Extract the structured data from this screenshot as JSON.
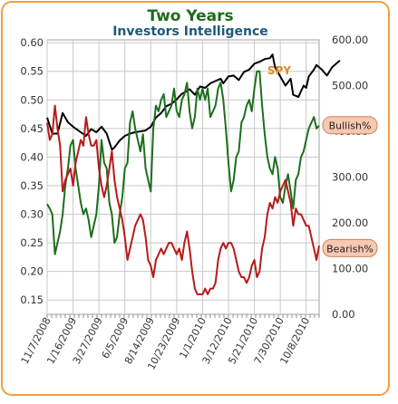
{
  "chart_data": {
    "type": "line",
    "title": "Two Years",
    "subtitle": "Investors Intelligence",
    "title_color": "#1e6b1e",
    "subtitle_color": "#1e5a78",
    "x_tick_labels": [
      "11/7/2008",
      "1/16/2009",
      "3/27/2009",
      "6/5/2009",
      "8/14/2009",
      "10/23/2009",
      "1/1/2010",
      "3/12/2010",
      "5/21/2010",
      "7/30/2010",
      "10/8/2010"
    ],
    "left_axis": {
      "ticks": [
        "0.60",
        "0.55",
        "0.50",
        "0.45",
        "0.40",
        "0.35",
        "0.30",
        "0.25",
        "0.20",
        "0.15"
      ],
      "ylim": [
        0.125,
        0.605
      ]
    },
    "right_axis": {
      "ticks": [
        "600.00",
        "500.00",
        "400.00",
        "300.00",
        "200.00",
        "100.00",
        "0.00"
      ],
      "ylim": [
        0,
        600
      ]
    },
    "grid": true,
    "x_count": 105,
    "series": [
      {
        "name": "SPY",
        "axis": "right",
        "color": "#000000",
        "label_color": "#e08a1e",
        "points": [
          [
            0,
            430
          ],
          [
            2,
            395
          ],
          [
            4,
            395
          ],
          [
            6,
            440
          ],
          [
            8,
            420
          ],
          [
            10,
            410
          ],
          [
            13,
            398
          ],
          [
            15,
            390
          ],
          [
            17,
            405
          ],
          [
            19,
            398
          ],
          [
            21,
            410
          ],
          [
            23,
            395
          ],
          [
            25,
            360
          ],
          [
            26,
            365
          ],
          [
            28,
            380
          ],
          [
            30,
            390
          ],
          [
            32,
            395
          ],
          [
            34,
            398
          ],
          [
            36,
            400
          ],
          [
            38,
            402
          ],
          [
            40,
            410
          ],
          [
            42,
            430
          ],
          [
            44,
            440
          ],
          [
            46,
            455
          ],
          [
            48,
            460
          ],
          [
            50,
            470
          ],
          [
            52,
            482
          ],
          [
            54,
            488
          ],
          [
            55,
            492
          ],
          [
            57,
            480
          ],
          [
            59,
            498
          ],
          [
            61,
            495
          ],
          [
            63,
            505
          ],
          [
            65,
            510
          ],
          [
            67,
            515
          ],
          [
            68,
            505
          ],
          [
            70,
            520
          ],
          [
            72,
            522
          ],
          [
            74,
            512
          ],
          [
            76,
            530
          ],
          [
            78,
            535
          ],
          [
            80,
            548
          ],
          [
            82,
            552
          ],
          [
            84,
            558
          ],
          [
            86,
            560
          ],
          [
            87,
            568
          ],
          [
            88,
            540
          ],
          [
            90,
            520
          ],
          [
            92,
            500
          ],
          [
            94,
            515
          ],
          [
            95,
            480
          ],
          [
            97,
            475
          ],
          [
            99,
            500
          ],
          [
            100,
            495
          ],
          [
            101,
            520
          ],
          [
            103,
            535
          ],
          [
            104,
            545
          ],
          [
            106,
            535
          ],
          [
            108,
            522
          ],
          [
            110,
            540
          ],
          [
            112,
            550
          ],
          [
            113,
            555
          ]
        ]
      },
      {
        "name": "Bullish%",
        "axis": "left",
        "color": "#1e6e1e",
        "points": [
          [
            0,
            0.318
          ],
          [
            1,
            0.31
          ],
          [
            2,
            0.3
          ],
          [
            3,
            0.23
          ],
          [
            4,
            0.25
          ],
          [
            5,
            0.27
          ],
          [
            6,
            0.3
          ],
          [
            7,
            0.35
          ],
          [
            8,
            0.38
          ],
          [
            9,
            0.42
          ],
          [
            10,
            0.43
          ],
          [
            11,
            0.38
          ],
          [
            12,
            0.35
          ],
          [
            13,
            0.32
          ],
          [
            14,
            0.3
          ],
          [
            15,
            0.31
          ],
          [
            16,
            0.29
          ],
          [
            17,
            0.26
          ],
          [
            18,
            0.28
          ],
          [
            19,
            0.3
          ],
          [
            20,
            0.35
          ],
          [
            21,
            0.43
          ],
          [
            22,
            0.39
          ],
          [
            23,
            0.38
          ],
          [
            24,
            0.32
          ],
          [
            25,
            0.3
          ],
          [
            26,
            0.25
          ],
          [
            27,
            0.26
          ],
          [
            28,
            0.3
          ],
          [
            29,
            0.33
          ],
          [
            30,
            0.38
          ],
          [
            31,
            0.39
          ],
          [
            32,
            0.46
          ],
          [
            33,
            0.48
          ],
          [
            34,
            0.45
          ],
          [
            35,
            0.43
          ],
          [
            36,
            0.41
          ],
          [
            37,
            0.44
          ],
          [
            38,
            0.38
          ],
          [
            39,
            0.36
          ],
          [
            40,
            0.34
          ],
          [
            41,
            0.45
          ],
          [
            42,
            0.49
          ],
          [
            43,
            0.48
          ],
          [
            44,
            0.5
          ],
          [
            45,
            0.51
          ],
          [
            46,
            0.47
          ],
          [
            47,
            0.48
          ],
          [
            48,
            0.49
          ],
          [
            49,
            0.52
          ],
          [
            50,
            0.48
          ],
          [
            51,
            0.47
          ],
          [
            52,
            0.5
          ],
          [
            53,
            0.51
          ],
          [
            54,
            0.53
          ],
          [
            55,
            0.48
          ],
          [
            56,
            0.45
          ],
          [
            57,
            0.47
          ],
          [
            58,
            0.52
          ],
          [
            59,
            0.5
          ],
          [
            60,
            0.52
          ],
          [
            61,
            0.5
          ],
          [
            62,
            0.52
          ],
          [
            63,
            0.47
          ],
          [
            64,
            0.48
          ],
          [
            65,
            0.49
          ],
          [
            66,
            0.52
          ],
          [
            67,
            0.53
          ],
          [
            68,
            0.5
          ],
          [
            69,
            0.45
          ],
          [
            70,
            0.39
          ],
          [
            71,
            0.34
          ],
          [
            72,
            0.36
          ],
          [
            73,
            0.4
          ],
          [
            74,
            0.41
          ],
          [
            75,
            0.46
          ],
          [
            76,
            0.47
          ],
          [
            77,
            0.49
          ],
          [
            78,
            0.5
          ],
          [
            79,
            0.48
          ],
          [
            80,
            0.52
          ],
          [
            81,
            0.55
          ],
          [
            82,
            0.55
          ],
          [
            83,
            0.49
          ],
          [
            84,
            0.44
          ],
          [
            85,
            0.4
          ],
          [
            86,
            0.38
          ],
          [
            87,
            0.37
          ],
          [
            88,
            0.4
          ],
          [
            89,
            0.38
          ],
          [
            90,
            0.33
          ],
          [
            91,
            0.32
          ],
          [
            92,
            0.35
          ],
          [
            93,
            0.37
          ],
          [
            94,
            0.34
          ],
          [
            95,
            0.31
          ],
          [
            96,
            0.36
          ],
          [
            97,
            0.37
          ],
          [
            98,
            0.4
          ],
          [
            99,
            0.41
          ],
          [
            100,
            0.43
          ],
          [
            101,
            0.45
          ],
          [
            102,
            0.46
          ],
          [
            103,
            0.47
          ],
          [
            104,
            0.45
          ],
          [
            105,
            0.455
          ]
        ]
      },
      {
        "name": "Bearish%",
        "axis": "left",
        "color": "#b81a1a",
        "points": [
          [
            0,
            0.46
          ],
          [
            1,
            0.43
          ],
          [
            2,
            0.44
          ],
          [
            3,
            0.49
          ],
          [
            4,
            0.45
          ],
          [
            5,
            0.42
          ],
          [
            6,
            0.34
          ],
          [
            7,
            0.36
          ],
          [
            8,
            0.37
          ],
          [
            9,
            0.38
          ],
          [
            10,
            0.35
          ],
          [
            11,
            0.39
          ],
          [
            12,
            0.41
          ],
          [
            13,
            0.43
          ],
          [
            14,
            0.42
          ],
          [
            15,
            0.47
          ],
          [
            16,
            0.44
          ],
          [
            17,
            0.42
          ],
          [
            18,
            0.42
          ],
          [
            19,
            0.43
          ],
          [
            20,
            0.38
          ],
          [
            21,
            0.35
          ],
          [
            22,
            0.33
          ],
          [
            23,
            0.35
          ],
          [
            24,
            0.38
          ],
          [
            25,
            0.41
          ],
          [
            26,
            0.36
          ],
          [
            27,
            0.33
          ],
          [
            28,
            0.31
          ],
          [
            29,
            0.29
          ],
          [
            30,
            0.26
          ],
          [
            31,
            0.22
          ],
          [
            32,
            0.24
          ],
          [
            33,
            0.26
          ],
          [
            34,
            0.28
          ],
          [
            35,
            0.29
          ],
          [
            36,
            0.3
          ],
          [
            37,
            0.29
          ],
          [
            38,
            0.26
          ],
          [
            39,
            0.22
          ],
          [
            40,
            0.21
          ],
          [
            41,
            0.19
          ],
          [
            42,
            0.22
          ],
          [
            43,
            0.23
          ],
          [
            44,
            0.24
          ],
          [
            45,
            0.23
          ],
          [
            46,
            0.24
          ],
          [
            47,
            0.25
          ],
          [
            48,
            0.25
          ],
          [
            49,
            0.24
          ],
          [
            50,
            0.23
          ],
          [
            51,
            0.24
          ],
          [
            52,
            0.22
          ],
          [
            53,
            0.25
          ],
          [
            54,
            0.27
          ],
          [
            55,
            0.24
          ],
          [
            56,
            0.2
          ],
          [
            57,
            0.17
          ],
          [
            58,
            0.16
          ],
          [
            59,
            0.16
          ],
          [
            60,
            0.16
          ],
          [
            61,
            0.17
          ],
          [
            62,
            0.16
          ],
          [
            63,
            0.17
          ],
          [
            64,
            0.17
          ],
          [
            65,
            0.18
          ],
          [
            66,
            0.22
          ],
          [
            67,
            0.24
          ],
          [
            68,
            0.25
          ],
          [
            69,
            0.24
          ],
          [
            70,
            0.25
          ],
          [
            71,
            0.25
          ],
          [
            72,
            0.24
          ],
          [
            73,
            0.22
          ],
          [
            74,
            0.2
          ],
          [
            75,
            0.19
          ],
          [
            76,
            0.19
          ],
          [
            77,
            0.18
          ],
          [
            78,
            0.19
          ],
          [
            79,
            0.21
          ],
          [
            80,
            0.22
          ],
          [
            81,
            0.19
          ],
          [
            82,
            0.2
          ],
          [
            83,
            0.24
          ],
          [
            84,
            0.26
          ],
          [
            85,
            0.3
          ],
          [
            86,
            0.32
          ],
          [
            87,
            0.31
          ],
          [
            88,
            0.33
          ],
          [
            89,
            0.32
          ],
          [
            90,
            0.34
          ],
          [
            91,
            0.35
          ],
          [
            92,
            0.36
          ],
          [
            93,
            0.34
          ],
          [
            94,
            0.32
          ],
          [
            95,
            0.28
          ],
          [
            96,
            0.31
          ],
          [
            97,
            0.3
          ],
          [
            98,
            0.3
          ],
          [
            99,
            0.29
          ],
          [
            100,
            0.28
          ],
          [
            101,
            0.28
          ],
          [
            102,
            0.26
          ],
          [
            103,
            0.24
          ],
          [
            104,
            0.22
          ],
          [
            105,
            0.245
          ]
        ]
      }
    ]
  }
}
